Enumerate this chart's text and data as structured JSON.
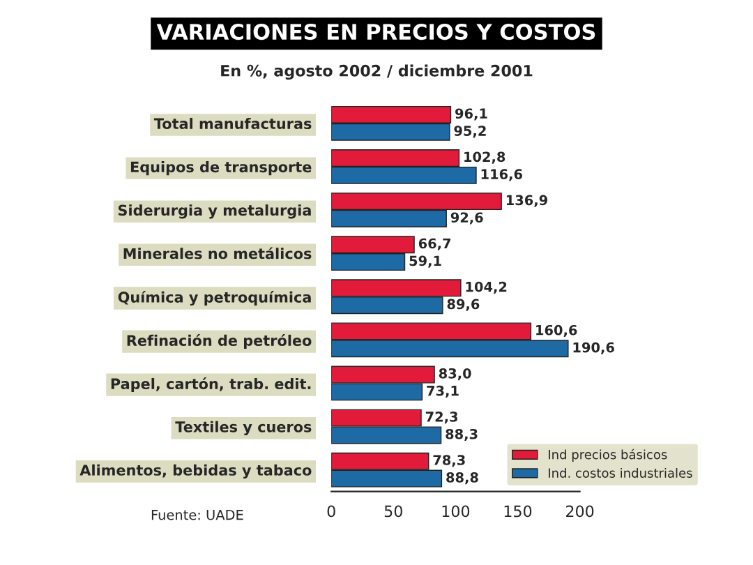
{
  "chart_data": {
    "type": "bar",
    "orientation": "horizontal",
    "title": "VARIACIONES EN PRECIOS Y COSTOS",
    "subtitle": "En %, agosto 2002 / diciembre 2001",
    "categories": [
      "Total manufacturas",
      "Equipos de transporte",
      "Siderurgia y metalurgia",
      "Minerales no metálicos",
      "Química y petroquímica",
      "Refinación de petróleo",
      "Papel, cartón, trab. edit.",
      "Textiles y cueros",
      "Alimentos, bebidas y tabaco"
    ],
    "series": [
      {
        "name": "Ind precios básicos",
        "color": "#e31b3b",
        "values": [
          96.1,
          102.8,
          136.9,
          66.7,
          104.2,
          160.6,
          83.0,
          72.3,
          78.3
        ],
        "value_labels": [
          "96,1",
          "102,8",
          "136,9",
          "66,7",
          "104,2",
          "160,6",
          "83,0",
          "72,3",
          "78,3"
        ]
      },
      {
        "name": "Ind. costos industriales",
        "color": "#1d6aa5",
        "values": [
          95.2,
          116.6,
          92.6,
          59.1,
          89.6,
          190.6,
          73.1,
          88.3,
          88.8
        ],
        "value_labels": [
          "95,2",
          "116,6",
          "92,6",
          "59,1",
          "89,6",
          "190,6",
          "73,1",
          "88,3",
          "88,8"
        ]
      }
    ],
    "xlim": [
      0,
      200
    ],
    "xticks": [
      0,
      50,
      100,
      150,
      200
    ],
    "grid": false,
    "legend": "bottom right",
    "annotations": [
      "Fuente: UADE"
    ]
  }
}
